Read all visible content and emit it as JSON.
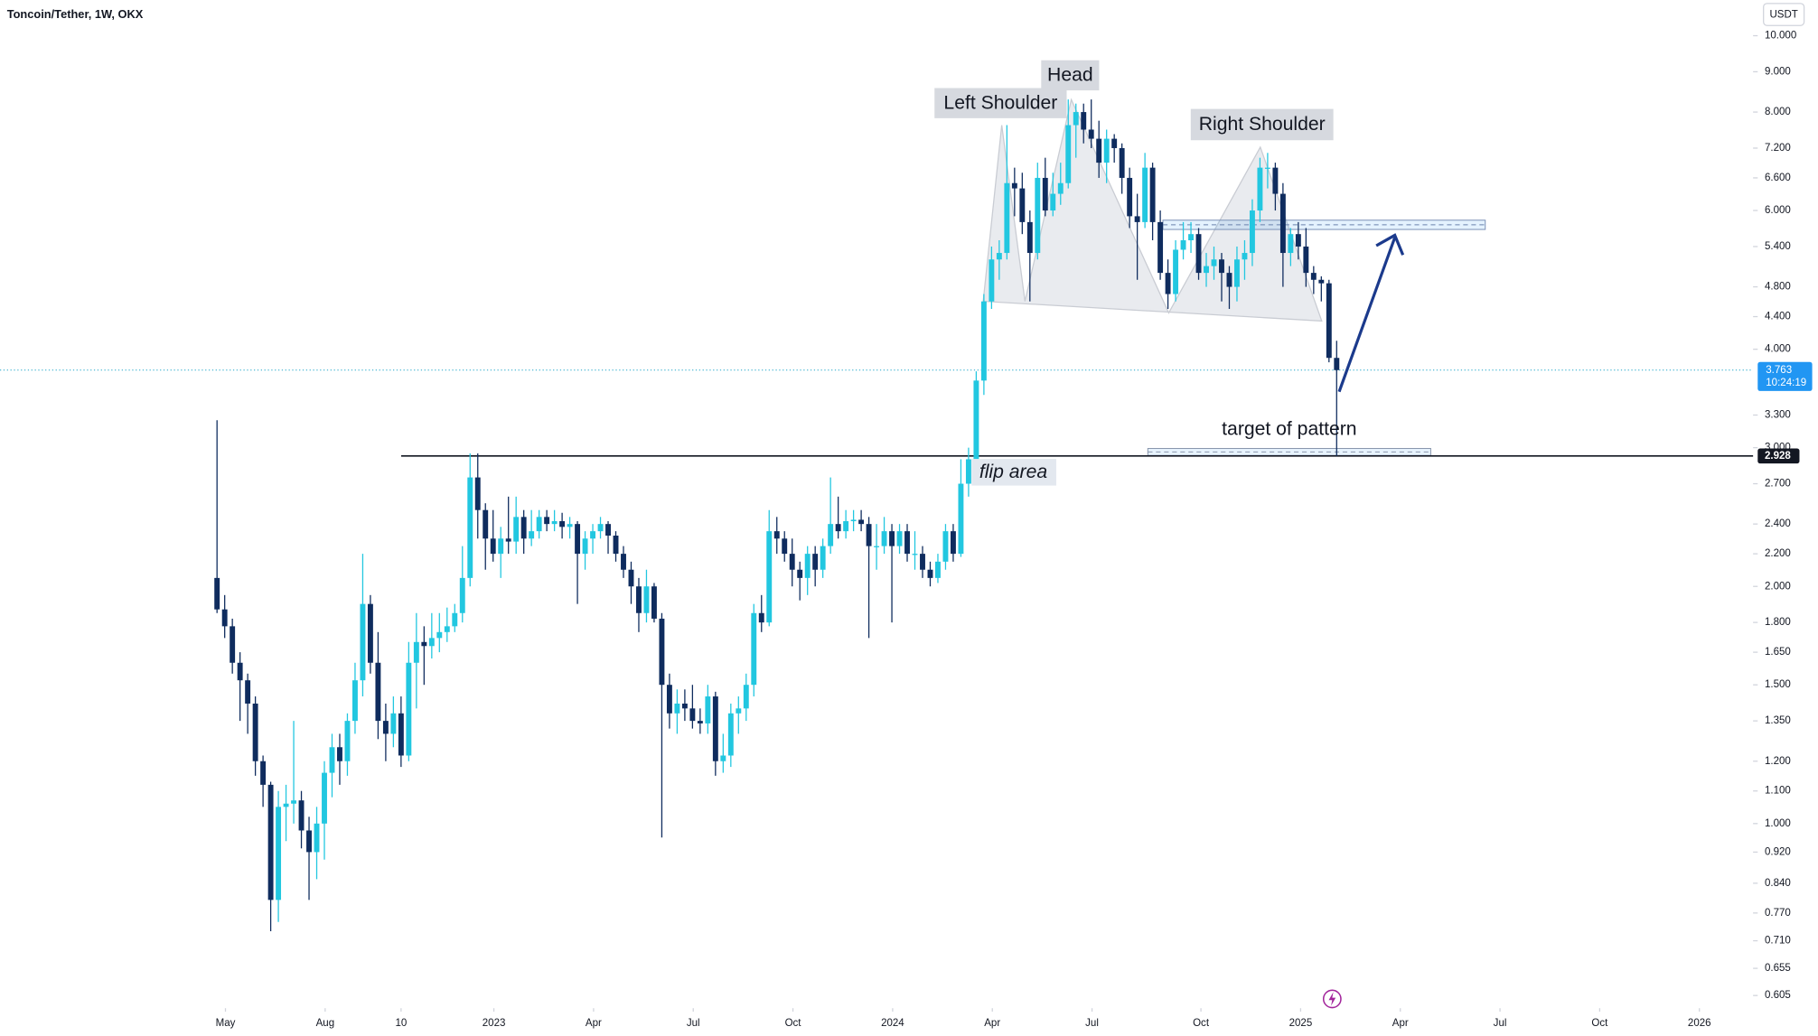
{
  "chart_data": {
    "type": "candlestick",
    "title": "Toncoin/Tether, 1W, OKX",
    "currency": "USDT",
    "log_scale": true,
    "grid": false,
    "up_color": "#22c7e0",
    "down_color": "#0f2c5e",
    "xlim": [
      -28.3,
      200.3
    ],
    "ylim": [
      0.583,
      11.1
    ],
    "xticks": [
      {
        "value": 1.1,
        "label": "May"
      },
      {
        "value": 14.1,
        "label": "Aug"
      },
      {
        "value": 24.0,
        "label": "10"
      },
      {
        "value": 36.1,
        "label": "2023"
      },
      {
        "value": 49.1,
        "label": "Apr"
      },
      {
        "value": 62.1,
        "label": "Jul"
      },
      {
        "value": 75.1,
        "label": "Oct"
      },
      {
        "value": 88.1,
        "label": "2024"
      },
      {
        "value": 101.1,
        "label": "Apr"
      },
      {
        "value": 114.1,
        "label": "Jul"
      },
      {
        "value": 128.3,
        "label": "Oct"
      },
      {
        "value": 141.3,
        "label": "2025"
      },
      {
        "value": 154.3,
        "label": "Apr"
      },
      {
        "value": 167.3,
        "label": "Jul"
      },
      {
        "value": 180.3,
        "label": "Oct"
      },
      {
        "value": 193.3,
        "label": "2026"
      }
    ],
    "yticks": [
      {
        "value": 10,
        "label": "10.000"
      },
      {
        "value": 9,
        "label": "9.000"
      },
      {
        "value": 8,
        "label": "8.000"
      },
      {
        "value": 7.2,
        "label": "7.200"
      },
      {
        "value": 6.6,
        "label": "6.600"
      },
      {
        "value": 6,
        "label": "6.000"
      },
      {
        "value": 5.4,
        "label": "5.400"
      },
      {
        "value": 4.8,
        "label": "4.800"
      },
      {
        "value": 4.4,
        "label": "4.400"
      },
      {
        "value": 4,
        "label": "4.000"
      },
      {
        "value": 3.3,
        "label": "3.300"
      },
      {
        "value": 3,
        "label": "3.000"
      },
      {
        "value": 2.7,
        "label": "2.700"
      },
      {
        "value": 2.4,
        "label": "2.400"
      },
      {
        "value": 2.2,
        "label": "2.200"
      },
      {
        "value": 2,
        "label": "2.000"
      },
      {
        "value": 1.8,
        "label": "1.800"
      },
      {
        "value": 1.65,
        "label": "1.650"
      },
      {
        "value": 1.5,
        "label": "1.500"
      },
      {
        "value": 1.35,
        "label": "1.350"
      },
      {
        "value": 1.2,
        "label": "1.200"
      },
      {
        "value": 1.1,
        "label": "1.100"
      },
      {
        "value": 1,
        "label": "1.000"
      },
      {
        "value": 0.92,
        "label": "0.920"
      },
      {
        "value": 0.84,
        "label": "0.840"
      },
      {
        "value": 0.77,
        "label": "0.770"
      },
      {
        "value": 0.71,
        "label": "0.710"
      },
      {
        "value": 0.655,
        "label": "0.655"
      },
      {
        "value": 0.605,
        "label": "0.605"
      }
    ],
    "last_price": 3.763,
    "countdown": "10:24:19",
    "level": 2.928,
    "annotations": {
      "left_shoulder": "Left Shoulder",
      "head": "Head",
      "right_shoulder": "Right Shoulder",
      "target": "target of pattern",
      "flip": "flip area"
    },
    "ohlc": [
      [
        2.05,
        3.25,
        1.85,
        1.87
      ],
      [
        1.87,
        1.95,
        1.72,
        1.78
      ],
      [
        1.78,
        1.82,
        1.55,
        1.6
      ],
      [
        1.6,
        1.65,
        1.35,
        1.52
      ],
      [
        1.52,
        1.55,
        1.3,
        1.42
      ],
      [
        1.42,
        1.45,
        1.15,
        1.2
      ],
      [
        1.2,
        1.22,
        1.05,
        1.12
      ],
      [
        1.12,
        1.13,
        0.73,
        0.8
      ],
      [
        0.8,
        1.1,
        0.75,
        1.05
      ],
      [
        1.05,
        1.12,
        0.95,
        1.06
      ],
      [
        1.06,
        1.35,
        1.0,
        1.07
      ],
      [
        1.07,
        1.1,
        0.93,
        0.98
      ],
      [
        0.98,
        1.02,
        0.8,
        0.92
      ],
      [
        0.92,
        1.05,
        0.85,
        1.0
      ],
      [
        1.0,
        1.2,
        0.9,
        1.16
      ],
      [
        1.16,
        1.3,
        1.08,
        1.25
      ],
      [
        1.25,
        1.3,
        1.12,
        1.2
      ],
      [
        1.2,
        1.38,
        1.15,
        1.35
      ],
      [
        1.35,
        1.6,
        1.3,
        1.52
      ],
      [
        1.52,
        2.2,
        1.45,
        1.9
      ],
      [
        1.9,
        1.95,
        1.55,
        1.6
      ],
      [
        1.6,
        1.75,
        1.28,
        1.35
      ],
      [
        1.35,
        1.42,
        1.2,
        1.3
      ],
      [
        1.3,
        1.45,
        1.25,
        1.38
      ],
      [
        1.38,
        1.45,
        1.18,
        1.22
      ],
      [
        1.22,
        1.7,
        1.2,
        1.6
      ],
      [
        1.6,
        1.85,
        1.4,
        1.7
      ],
      [
        1.7,
        1.78,
        1.5,
        1.68
      ],
      [
        1.68,
        1.85,
        1.62,
        1.72
      ],
      [
        1.72,
        1.85,
        1.65,
        1.75
      ],
      [
        1.75,
        1.88,
        1.7,
        1.78
      ],
      [
        1.78,
        1.9,
        1.75,
        1.85
      ],
      [
        1.85,
        2.25,
        1.8,
        2.05
      ],
      [
        2.05,
        2.95,
        2.0,
        2.75
      ],
      [
        2.75,
        2.95,
        2.3,
        2.5
      ],
      [
        2.5,
        2.55,
        2.1,
        2.3
      ],
      [
        2.3,
        2.5,
        2.15,
        2.2
      ],
      [
        2.2,
        2.38,
        2.05,
        2.3
      ],
      [
        2.3,
        2.6,
        2.2,
        2.28
      ],
      [
        2.28,
        2.6,
        2.2,
        2.45
      ],
      [
        2.45,
        2.5,
        2.2,
        2.3
      ],
      [
        2.3,
        2.5,
        2.25,
        2.35
      ],
      [
        2.35,
        2.5,
        2.3,
        2.45
      ],
      [
        2.45,
        2.5,
        2.35,
        2.4
      ],
      [
        2.4,
        2.5,
        2.35,
        2.42
      ],
      [
        2.42,
        2.48,
        2.3,
        2.38
      ],
      [
        2.38,
        2.45,
        2.3,
        2.4
      ],
      [
        2.4,
        2.42,
        1.9,
        2.2
      ],
      [
        2.2,
        2.35,
        2.1,
        2.3
      ],
      [
        2.3,
        2.4,
        2.2,
        2.35
      ],
      [
        2.35,
        2.45,
        2.3,
        2.4
      ],
      [
        2.4,
        2.42,
        2.2,
        2.32
      ],
      [
        2.32,
        2.35,
        2.15,
        2.2
      ],
      [
        2.2,
        2.25,
        2.05,
        2.1
      ],
      [
        2.1,
        2.15,
        1.9,
        2.0
      ],
      [
        2.0,
        2.05,
        1.75,
        1.85
      ],
      [
        1.85,
        2.1,
        1.8,
        2.0
      ],
      [
        2.0,
        2.02,
        1.8,
        1.82
      ],
      [
        1.82,
        1.85,
        0.96,
        1.5
      ],
      [
        1.5,
        1.55,
        1.32,
        1.38
      ],
      [
        1.38,
        1.48,
        1.3,
        1.42
      ],
      [
        1.42,
        1.48,
        1.35,
        1.4
      ],
      [
        1.4,
        1.5,
        1.32,
        1.35
      ],
      [
        1.35,
        1.4,
        1.3,
        1.34
      ],
      [
        1.34,
        1.5,
        1.3,
        1.45
      ],
      [
        1.45,
        1.47,
        1.15,
        1.2
      ],
      [
        1.2,
        1.3,
        1.16,
        1.22
      ],
      [
        1.22,
        1.42,
        1.18,
        1.38
      ],
      [
        1.38,
        1.45,
        1.3,
        1.4
      ],
      [
        1.4,
        1.55,
        1.35,
        1.5
      ],
      [
        1.5,
        1.9,
        1.45,
        1.85
      ],
      [
        1.85,
        1.95,
        1.75,
        1.8
      ],
      [
        1.8,
        2.5,
        1.78,
        2.35
      ],
      [
        2.35,
        2.45,
        2.2,
        2.3
      ],
      [
        2.3,
        2.35,
        2.15,
        2.2
      ],
      [
        2.2,
        2.3,
        2.0,
        2.1
      ],
      [
        2.1,
        2.15,
        1.92,
        2.05
      ],
      [
        2.05,
        2.25,
        1.95,
        2.2
      ],
      [
        2.2,
        2.25,
        2.0,
        2.1
      ],
      [
        2.1,
        2.3,
        2.05,
        2.25
      ],
      [
        2.25,
        2.75,
        2.2,
        2.4
      ],
      [
        2.4,
        2.6,
        2.3,
        2.35
      ],
      [
        2.35,
        2.5,
        2.3,
        2.42
      ],
      [
        2.42,
        2.5,
        2.35,
        2.43
      ],
      [
        2.43,
        2.5,
        2.35,
        2.4
      ],
      [
        2.4,
        2.45,
        1.72,
        2.25
      ],
      [
        2.25,
        2.4,
        2.1,
        2.25
      ],
      [
        2.25,
        2.45,
        2.2,
        2.35
      ],
      [
        2.35,
        2.4,
        1.8,
        2.25
      ],
      [
        2.25,
        2.4,
        2.2,
        2.35
      ],
      [
        2.35,
        2.4,
        2.15,
        2.2
      ],
      [
        2.2,
        2.35,
        2.1,
        2.2
      ],
      [
        2.2,
        2.25,
        2.05,
        2.1
      ],
      [
        2.1,
        2.15,
        2.0,
        2.05
      ],
      [
        2.05,
        2.2,
        2.02,
        2.15
      ],
      [
        2.15,
        2.4,
        2.1,
        2.35
      ],
      [
        2.35,
        2.4,
        2.15,
        2.2
      ],
      [
        2.2,
        2.9,
        2.18,
        2.7
      ],
      [
        2.7,
        3.0,
        2.6,
        2.9
      ],
      [
        2.9,
        3.75,
        2.85,
        3.65
      ],
      [
        3.65,
        4.7,
        3.5,
        4.6
      ],
      [
        4.6,
        5.4,
        4.5,
        5.2
      ],
      [
        5.2,
        5.5,
        4.9,
        5.3
      ],
      [
        5.3,
        7.7,
        5.2,
        6.5
      ],
      [
        6.5,
        6.8,
        5.9,
        6.4
      ],
      [
        6.4,
        6.7,
        5.6,
        5.8
      ],
      [
        5.8,
        6.0,
        4.6,
        5.3
      ],
      [
        5.3,
        6.9,
        5.2,
        6.6
      ],
      [
        6.6,
        7.0,
        5.9,
        6.0
      ],
      [
        6.0,
        6.7,
        5.9,
        6.3
      ],
      [
        6.3,
        6.9,
        6.1,
        6.5
      ],
      [
        6.5,
        8.3,
        6.4,
        7.7
      ],
      [
        7.7,
        8.2,
        7.0,
        8.0
      ],
      [
        8.0,
        8.2,
        7.3,
        7.6
      ],
      [
        7.6,
        8.3,
        7.2,
        7.4
      ],
      [
        7.4,
        7.8,
        6.6,
        6.9
      ],
      [
        6.9,
        7.6,
        6.5,
        7.4
      ],
      [
        7.4,
        7.5,
        6.9,
        7.2
      ],
      [
        7.2,
        7.3,
        6.3,
        6.6
      ],
      [
        6.6,
        6.8,
        5.7,
        5.9
      ],
      [
        5.9,
        6.3,
        4.9,
        5.8
      ],
      [
        5.8,
        7.1,
        5.7,
        6.8
      ],
      [
        6.8,
        6.9,
        5.5,
        5.8
      ],
      [
        5.8,
        6.0,
        4.9,
        5.0
      ],
      [
        5.0,
        5.2,
        4.5,
        4.7
      ],
      [
        4.7,
        5.5,
        4.6,
        5.35
      ],
      [
        5.35,
        5.8,
        5.2,
        5.5
      ],
      [
        5.5,
        5.8,
        5.3,
        5.6
      ],
      [
        5.6,
        5.7,
        4.9,
        5.0
      ],
      [
        5.0,
        5.3,
        4.8,
        5.1
      ],
      [
        5.1,
        5.4,
        4.9,
        5.2
      ],
      [
        5.2,
        5.3,
        4.6,
        5.0
      ],
      [
        5.0,
        5.1,
        4.5,
        4.8
      ],
      [
        4.8,
        5.4,
        4.6,
        5.2
      ],
      [
        5.2,
        5.5,
        4.9,
        5.3
      ],
      [
        5.3,
        6.2,
        5.1,
        6.0
      ],
      [
        6.0,
        7.0,
        5.8,
        6.8
      ],
      [
        6.8,
        7.1,
        6.4,
        6.8
      ],
      [
        6.8,
        6.9,
        6.0,
        6.3
      ],
      [
        6.3,
        6.5,
        4.8,
        5.3
      ],
      [
        5.3,
        5.7,
        5.1,
        5.6
      ],
      [
        5.6,
        5.8,
        5.2,
        5.4
      ],
      [
        5.4,
        5.7,
        4.8,
        5.0
      ],
      [
        5.0,
        5.1,
        4.7,
        4.9
      ],
      [
        4.9,
        4.95,
        4.6,
        4.85
      ],
      [
        4.85,
        4.9,
        3.85,
        3.9
      ],
      [
        3.9,
        4.1,
        2.928,
        3.763
      ]
    ]
  }
}
